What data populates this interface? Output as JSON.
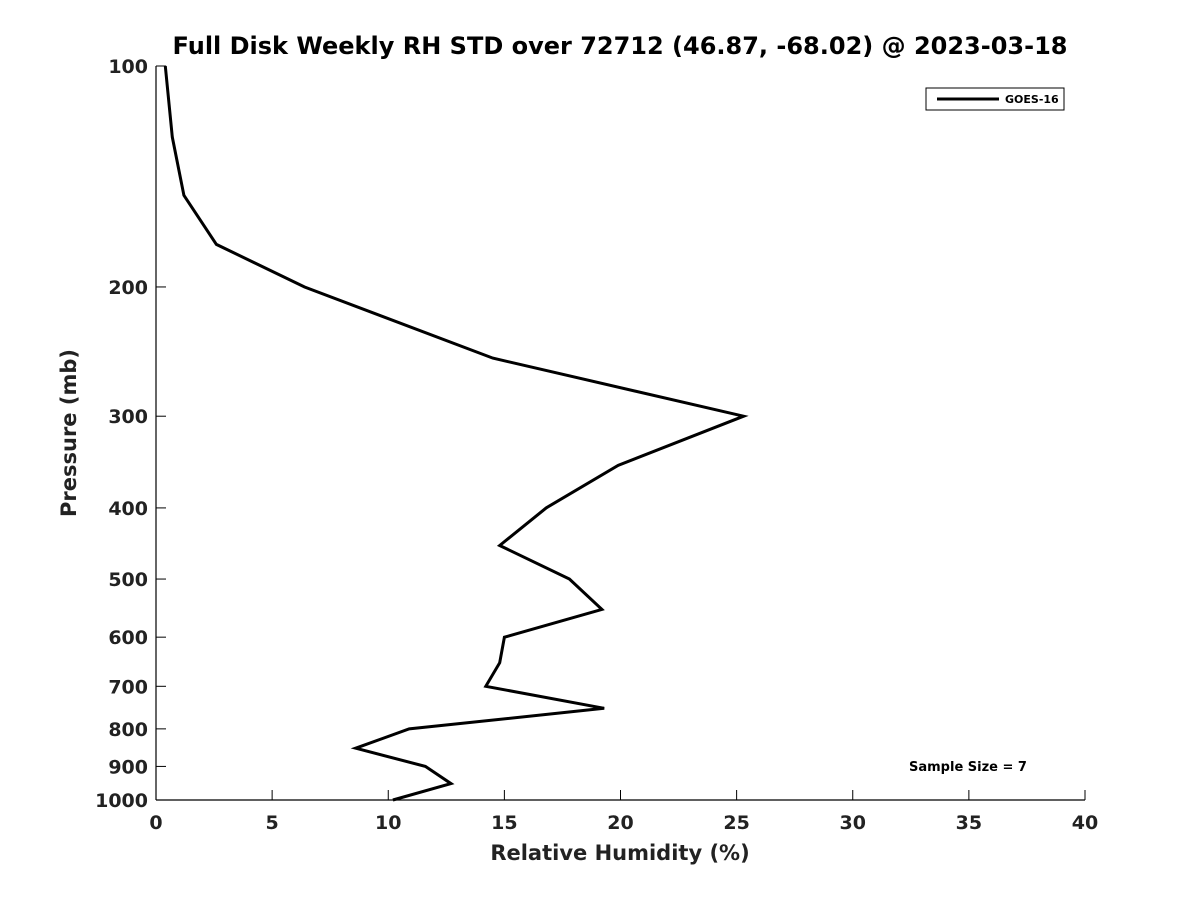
{
  "chart_data": {
    "type": "line",
    "title": "Full Disk Weekly RH STD over 72712 (46.87, -68.02) @ 2023-03-18",
    "xlabel": "Relative Humidity (%)",
    "ylabel": "Pressure (mb)",
    "xlim": [
      0,
      40
    ],
    "ylim": [
      100,
      1000
    ],
    "y_scale": "log",
    "y_reversed": true,
    "grid": false,
    "legend_position": "top-right",
    "x_ticks": [
      0,
      5,
      10,
      15,
      20,
      25,
      30,
      35,
      40
    ],
    "y_ticks": [
      100,
      200,
      300,
      400,
      500,
      600,
      700,
      800,
      900,
      1000
    ],
    "annotation": "Sample Size = 7",
    "series": [
      {
        "name": "GOES-16",
        "color": "#000000",
        "points": [
          [
            0.4,
            100
          ],
          [
            0.7,
            125
          ],
          [
            1.2,
            150
          ],
          [
            2.6,
            175
          ],
          [
            6.4,
            200
          ],
          [
            14.5,
            250
          ],
          [
            25.3,
            300
          ],
          [
            19.9,
            350
          ],
          [
            16.8,
            400
          ],
          [
            14.8,
            450
          ],
          [
            17.8,
            500
          ],
          [
            19.2,
            550
          ],
          [
            15.0,
            600
          ],
          [
            14.8,
            650
          ],
          [
            14.2,
            700
          ],
          [
            19.3,
            750
          ],
          [
            10.9,
            800
          ],
          [
            8.6,
            850
          ],
          [
            11.6,
            900
          ],
          [
            12.7,
            950
          ],
          [
            10.2,
            1000
          ]
        ]
      }
    ]
  }
}
